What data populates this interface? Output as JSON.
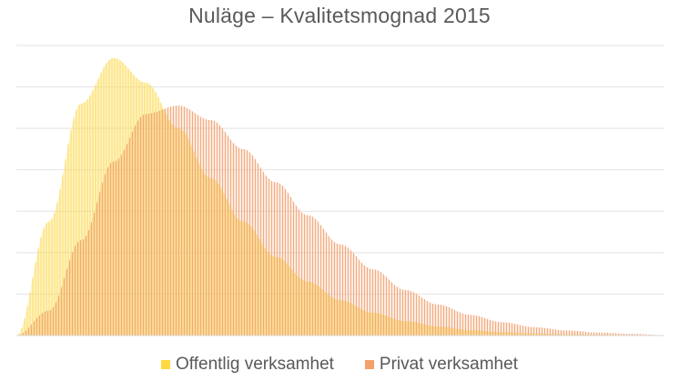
{
  "chart_data": {
    "type": "area",
    "title": "Nuläge – Kvalitetsmognad 2015",
    "xlabel": "",
    "ylabel": "",
    "x_range": [
      0,
      100
    ],
    "ylim": [
      0,
      7
    ],
    "grid": true,
    "legend_position": "bottom",
    "x": [
      0,
      5,
      10,
      15,
      20,
      25,
      30,
      35,
      40,
      45,
      50,
      55,
      60,
      65,
      70,
      75,
      80,
      85,
      90,
      95,
      100
    ],
    "series": [
      {
        "name": "Offentlig verksamhet",
        "color": "#ffe066",
        "values": [
          0.0,
          2.75,
          5.6,
          6.7,
          6.1,
          5.0,
          3.8,
          2.75,
          1.9,
          1.3,
          0.85,
          0.55,
          0.35,
          0.22,
          0.13,
          0.08,
          0.05,
          0.03,
          0.02,
          0.01,
          0.0
        ]
      },
      {
        "name": "Privat verksamhet",
        "color": "#f4b183",
        "values": [
          0.0,
          0.6,
          2.3,
          4.2,
          5.35,
          5.55,
          5.2,
          4.5,
          3.7,
          2.9,
          2.2,
          1.6,
          1.1,
          0.75,
          0.5,
          0.32,
          0.2,
          0.12,
          0.07,
          0.04,
          0.01
        ]
      }
    ]
  }
}
